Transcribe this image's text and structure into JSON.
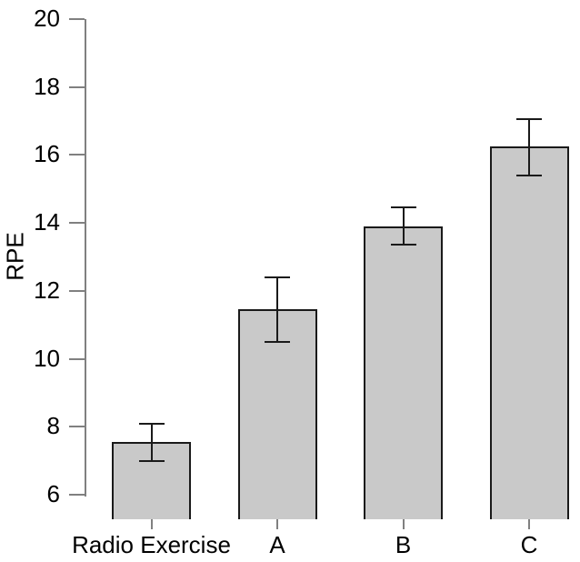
{
  "chart_data": {
    "type": "bar",
    "categories": [
      "Radio Exercise",
      "A",
      "B",
      "C"
    ],
    "values": [
      7.55,
      11.45,
      13.9,
      16.25
    ],
    "error_upper": [
      8.1,
      12.4,
      14.45,
      17.05
    ],
    "error_lower": [
      7.0,
      10.5,
      13.35,
      15.4
    ],
    "title": "",
    "xlabel": "",
    "ylabel": "RPE",
    "yticks": [
      6,
      8,
      10,
      12,
      14,
      16,
      18,
      20
    ],
    "axis_range": [
      6,
      20
    ],
    "grid": false,
    "legend_position": "none",
    "bar_fill": "#c9c9c9",
    "bar_border": "#1a1a1a",
    "error_color": "#1a1a1a",
    "axis_color": "#808080",
    "text_color": "#000000"
  }
}
